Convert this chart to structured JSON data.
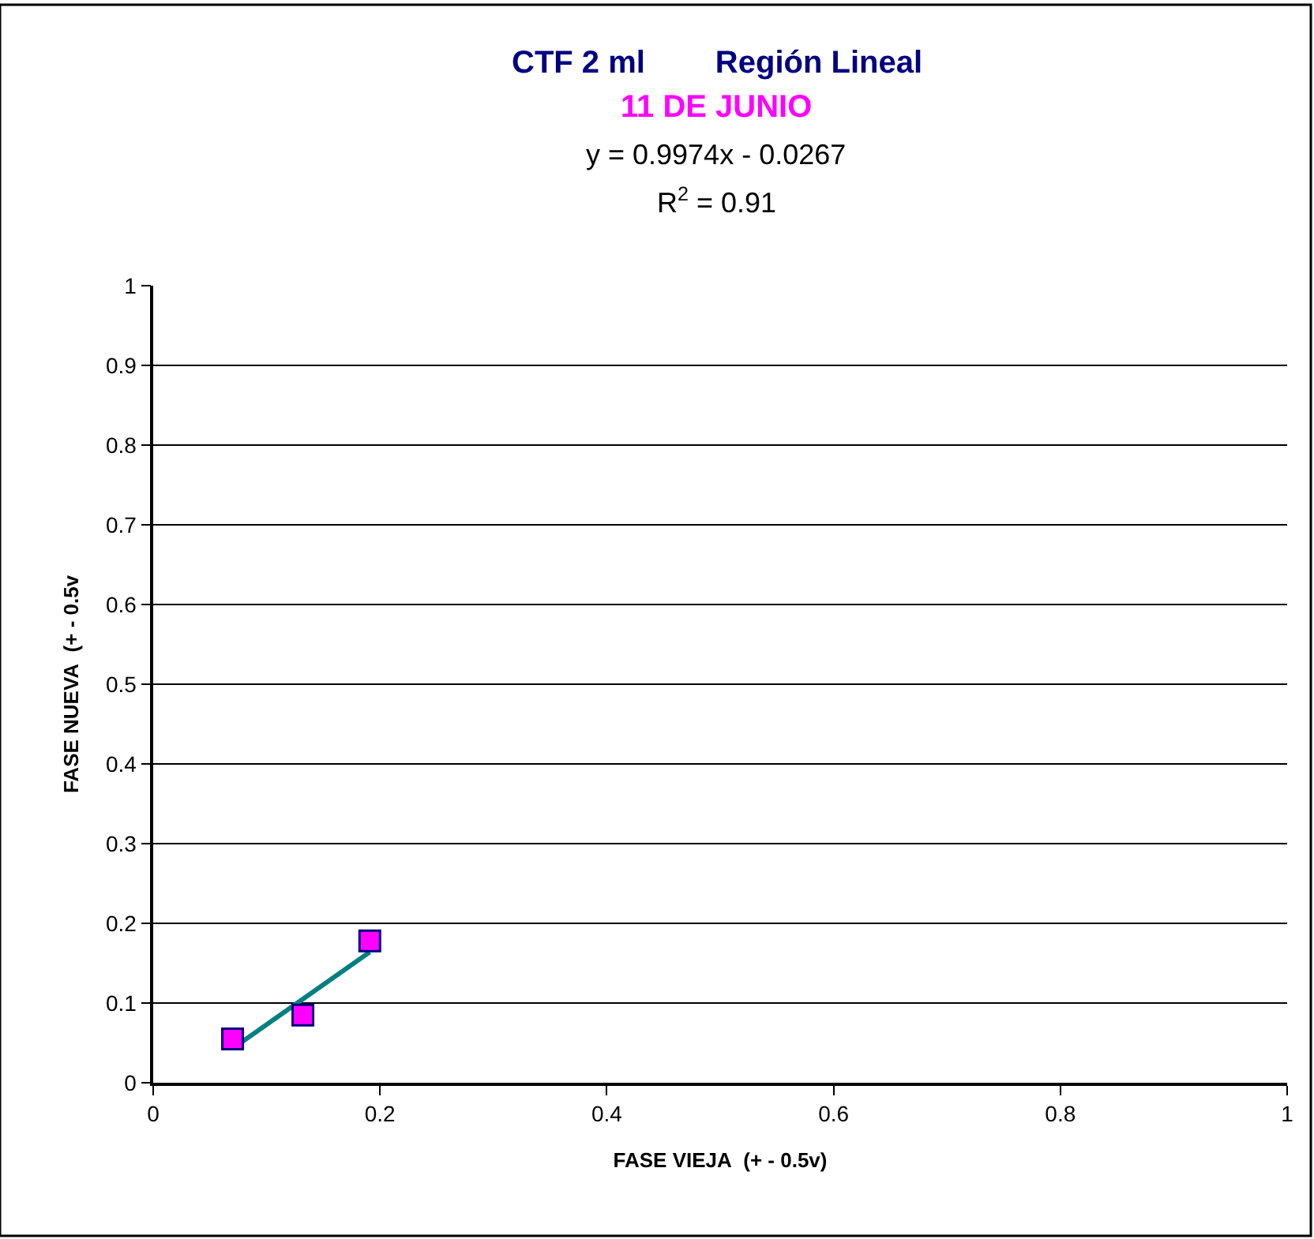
{
  "chart_data": {
    "type": "scatter",
    "title": "CTF 2 ml        Región Lineal",
    "subtitle": "11 DE JUNIO",
    "xlabel": "FASE VIEJA  (+ - 0.5v)",
    "ylabel": "FASE NUEVA  (+ - 0.5v",
    "annotations": [
      "y = 0.9974x - 0.0267",
      "R$^{2}$ = 0.91"
    ],
    "series": [
      {
        "color": "#ff00ff",
        "x": [
          0.07,
          0.132,
          0.191
        ],
        "values": [
          0.055,
          0.085,
          0.178
        ]
      },
      {
        "type": "line",
        "color": "#008080",
        "marker": "none",
        "x": [
          0.07,
          0.191
        ],
        "values": [
          0.043,
          0.164
        ]
      }
    ],
    "marker": "square",
    "xlim": [
      0,
      1
    ],
    "xticks": [
      0,
      0.2,
      0.4,
      0.6,
      0.8,
      1
    ],
    "ylim": [
      0,
      1
    ],
    "yticks": [
      0,
      0.1,
      0.2,
      0.3,
      0.4,
      0.5,
      0.6,
      0.7,
      0.8,
      0.9,
      1
    ],
    "grid": "y"
  }
}
